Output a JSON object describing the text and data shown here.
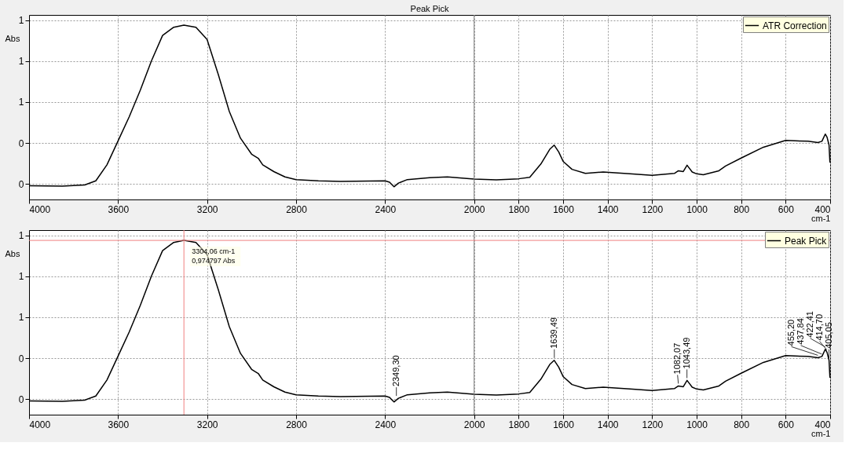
{
  "chart_data": [
    {
      "type": "line",
      "title": "Peak Pick",
      "xlabel": "cm-1",
      "ylabel": "Abs",
      "x": [
        4000,
        3850,
        3750,
        3700,
        3650,
        3600,
        3550,
        3500,
        3450,
        3400,
        3350,
        3304.06,
        3250,
        3200,
        3150,
        3100,
        3050,
        3000,
        2970,
        2950,
        2900,
        2850,
        2800,
        2700,
        2600,
        2400,
        2380,
        2360,
        2340,
        2300,
        2200,
        2120,
        2000,
        1900,
        1800,
        1750,
        1700,
        1660,
        1640,
        1620,
        1600,
        1560,
        1500,
        1420,
        1300,
        1200,
        1150,
        1100,
        1082,
        1060,
        1043,
        1020,
        1000,
        970,
        900,
        870,
        800,
        700,
        600,
        500,
        455,
        437,
        422,
        414,
        405,
        401
      ],
      "series": [
        {
          "name": "ATR Correction",
          "color": "#000000",
          "values": [
            0.192,
            0.19,
            0.196,
            0.216,
            0.294,
            0.411,
            0.528,
            0.658,
            0.801,
            0.925,
            0.965,
            0.975,
            0.965,
            0.905,
            0.736,
            0.554,
            0.424,
            0.346,
            0.326,
            0.294,
            0.261,
            0.235,
            0.222,
            0.216,
            0.213,
            0.216,
            0.209,
            0.187,
            0.205,
            0.222,
            0.231,
            0.235,
            0.225,
            0.221,
            0.226,
            0.233,
            0.298,
            0.37,
            0.39,
            0.357,
            0.311,
            0.272,
            0.252,
            0.259,
            0.25,
            0.243,
            0.248,
            0.252,
            0.265,
            0.261,
            0.292,
            0.259,
            0.25,
            0.246,
            0.265,
            0.288,
            0.327,
            0.38,
            0.413,
            0.409,
            0.403,
            0.409,
            0.444,
            0.429,
            0.39,
            0.305
          ]
        }
      ],
      "xlim": [
        4000,
        400
      ],
      "xticks": [
        4000,
        3600,
        3200,
        2800,
        2400,
        2000,
        1800,
        1600,
        1400,
        1200,
        1000,
        800,
        600,
        400
      ],
      "ylim": [
        0.125,
        1.025
      ],
      "yticks": [
        {
          "value": 0.2,
          "label": "0"
        },
        {
          "value": 0.4,
          "label": "0"
        },
        {
          "value": 0.6,
          "label": "1"
        },
        {
          "value": 0.8,
          "label": "1"
        },
        1
      ],
      "ref_lines": [
        {
          "axis": "x",
          "value": 2000,
          "color": "#808080"
        }
      ],
      "grid": true,
      "legend": "top right"
    },
    {
      "type": "line",
      "xlabel": "cm-1",
      "ylabel": "Abs",
      "x": [
        4000,
        3850,
        3750,
        3700,
        3650,
        3600,
        3550,
        3500,
        3450,
        3400,
        3350,
        3304.06,
        3250,
        3200,
        3150,
        3100,
        3050,
        3000,
        2970,
        2950,
        2900,
        2850,
        2800,
        2700,
        2600,
        2400,
        2380,
        2360,
        2340,
        2300,
        2200,
        2120,
        2000,
        1900,
        1800,
        1750,
        1700,
        1660,
        1640,
        1620,
        1600,
        1560,
        1500,
        1420,
        1300,
        1200,
        1150,
        1100,
        1082,
        1060,
        1043,
        1020,
        1000,
        970,
        900,
        870,
        800,
        700,
        600,
        500,
        455,
        437,
        422,
        414,
        405,
        401
      ],
      "series": [
        {
          "name": "Peak Pick",
          "color": "#000000",
          "values": [
            0.192,
            0.19,
            0.196,
            0.216,
            0.294,
            0.411,
            0.528,
            0.658,
            0.801,
            0.925,
            0.965,
            0.975,
            0.965,
            0.905,
            0.736,
            0.554,
            0.424,
            0.346,
            0.326,
            0.294,
            0.261,
            0.235,
            0.222,
            0.216,
            0.213,
            0.216,
            0.209,
            0.187,
            0.205,
            0.222,
            0.231,
            0.235,
            0.225,
            0.221,
            0.226,
            0.233,
            0.298,
            0.37,
            0.39,
            0.357,
            0.311,
            0.272,
            0.252,
            0.259,
            0.25,
            0.243,
            0.248,
            0.252,
            0.265,
            0.261,
            0.292,
            0.259,
            0.25,
            0.246,
            0.265,
            0.288,
            0.327,
            0.38,
            0.413,
            0.409,
            0.403,
            0.409,
            0.444,
            0.429,
            0.39,
            0.305
          ]
        }
      ],
      "xlim": [
        4000,
        400
      ],
      "xticks": [
        4000,
        3600,
        3200,
        2800,
        2400,
        2000,
        1800,
        1600,
        1400,
        1200,
        1000,
        800,
        600,
        400
      ],
      "ylim": [
        0.125,
        1.025
      ],
      "yticks": [
        {
          "value": 0.2,
          "label": "0"
        },
        {
          "value": 0.4,
          "label": "0"
        },
        {
          "value": 0.6,
          "label": "1"
        },
        {
          "value": 0.8,
          "label": "1"
        },
        1
      ],
      "ref_lines": [
        {
          "axis": "x",
          "value": 2000,
          "color": "#808080"
        },
        {
          "axis": "x",
          "value": 3304.06,
          "color": "#f08080"
        },
        {
          "axis": "y",
          "value": 0.974797,
          "color": "#f08080"
        }
      ],
      "annotations": [
        {
          "text": "3304,06 cm-1",
          "x": 3304.06,
          "y": 0.974797
        },
        {
          "text": "0,974797 Abs",
          "x": 3304.06,
          "y": 0.974797
        },
        {
          "text": "2349,30",
          "x": 2349.3,
          "y": 0.205
        },
        {
          "text": "1639,49",
          "x": 1639.49,
          "y": 0.39
        },
        {
          "text": "1082,07",
          "x": 1082.07,
          "y": 0.265
        },
        {
          "text": "1043,49",
          "x": 1043.49,
          "y": 0.292
        },
        {
          "text": "455,20",
          "x": 455.2,
          "y": 0.403
        },
        {
          "text": "437,84",
          "x": 437.84,
          "y": 0.409
        },
        {
          "text": "422,41",
          "x": 422.41,
          "y": 0.444
        },
        {
          "text": "414,70",
          "x": 414.7,
          "y": 0.429
        },
        {
          "text": "405,05",
          "x": 405.05,
          "y": 0.39
        }
      ],
      "grid": true,
      "legend": "top right"
    }
  ]
}
